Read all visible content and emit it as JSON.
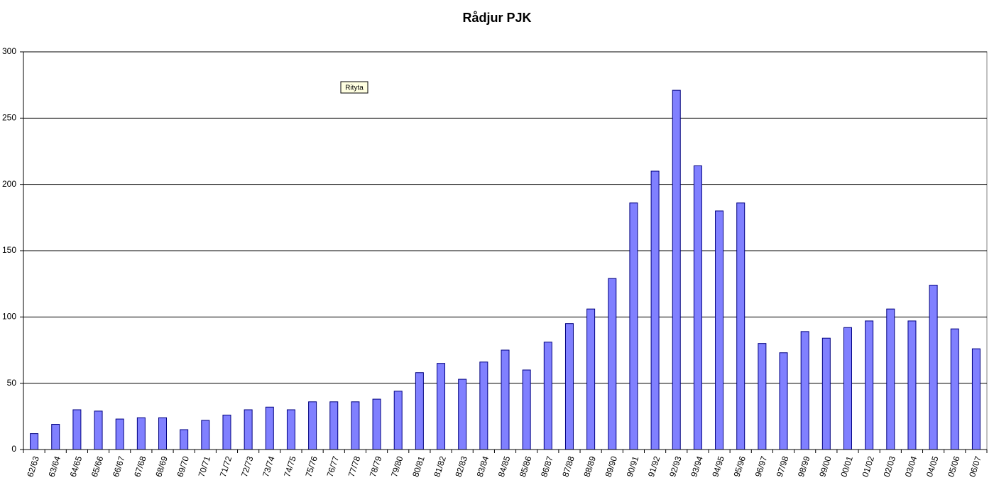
{
  "chart_data": {
    "type": "bar",
    "title": "Rådjur   PJK",
    "annotation": "Rityta",
    "categories": [
      "62/63",
      "63/64",
      "64/65",
      "65/66",
      "66/67",
      "67/68",
      "68/69",
      "69/70",
      "70/71",
      "71/72",
      "72/73",
      "73/74",
      "74/75",
      "75/76",
      "76/77",
      "77/78",
      "78/79",
      "79/80",
      "80/81",
      "81/82",
      "82/83",
      "83/84",
      "84/85",
      "85/86",
      "86/87",
      "87/88",
      "88/89",
      "89/90",
      "90/91",
      "91/92",
      "92/93",
      "93/94",
      "94/95",
      "95/96",
      "96/97",
      "97/98",
      "98/99",
      "99/00",
      "00/01",
      "01/02",
      "02/03",
      "03/04",
      "04/05",
      "05/06",
      "06/07"
    ],
    "values": [
      12,
      19,
      30,
      29,
      23,
      24,
      24,
      15,
      22,
      26,
      30,
      32,
      30,
      36,
      36,
      36,
      38,
      44,
      58,
      65,
      53,
      66,
      75,
      60,
      81,
      95,
      106,
      129,
      186,
      210,
      271,
      214,
      180,
      186,
      80,
      73,
      89,
      84,
      92,
      97,
      106,
      97,
      124,
      91,
      76
    ],
    "color": "#8080ff",
    "ylim": [
      0,
      300
    ],
    "yticks": [
      0,
      50,
      100,
      150,
      200,
      250,
      300
    ],
    "grid": true
  }
}
